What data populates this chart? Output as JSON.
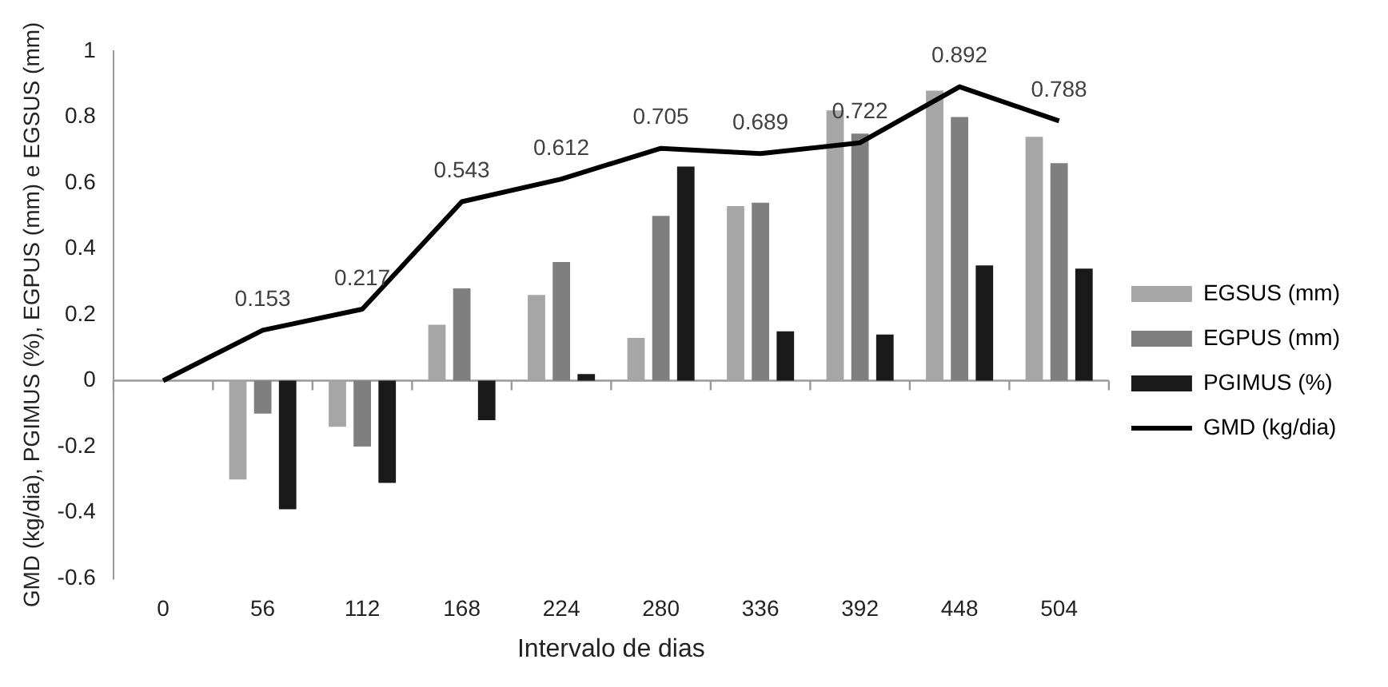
{
  "chart_data": {
    "type": "bar",
    "xlabel": "Intervalo de dias",
    "ylabel": "GMD (kg/dia), PGIMUS (%), EGPUS (mm) e EGSUS (mm)",
    "categories": [
      "0",
      "56",
      "112",
      "168",
      "224",
      "280",
      "336",
      "392",
      "448",
      "504"
    ],
    "series": [
      {
        "name": "EGSUS (mm)",
        "color": "#a6a6a6",
        "values": [
          null,
          -0.3,
          -0.14,
          0.17,
          0.26,
          0.13,
          0.53,
          0.82,
          0.88,
          0.74
        ]
      },
      {
        "name": "EGPUS (mm)",
        "color": "#7f7f7f",
        "values": [
          null,
          -0.1,
          -0.2,
          0.28,
          0.36,
          0.5,
          0.54,
          0.75,
          0.8,
          0.66
        ]
      },
      {
        "name": "PGIMUS (%)",
        "color": "#1a1a1a",
        "values": [
          null,
          -0.39,
          -0.31,
          -0.12,
          0.02,
          0.65,
          0.15,
          0.14,
          0.35,
          0.34
        ]
      },
      {
        "name": "GMD (kg/dia)",
        "type": "line",
        "color": "#000000",
        "marker": "none",
        "values": [
          0,
          0.153,
          0.217,
          0.543,
          0.612,
          0.705,
          0.689,
          0.722,
          0.892,
          0.788
        ],
        "value_labels": [
          null,
          "0.153",
          "0.217",
          "0.543",
          "0.612",
          "0.705",
          "0.689",
          "0.722",
          "0.892",
          "0.788"
        ]
      }
    ],
    "ylim": [
      -0.6,
      1
    ],
    "yticks": [
      -0.6,
      -0.4,
      -0.2,
      0,
      0.2,
      0.4,
      0.6,
      0.8,
      1
    ],
    "ref_lines": [
      {
        "axis": "y",
        "value": 0,
        "color": "#999999"
      }
    ],
    "grid": false,
    "legend": "right"
  }
}
